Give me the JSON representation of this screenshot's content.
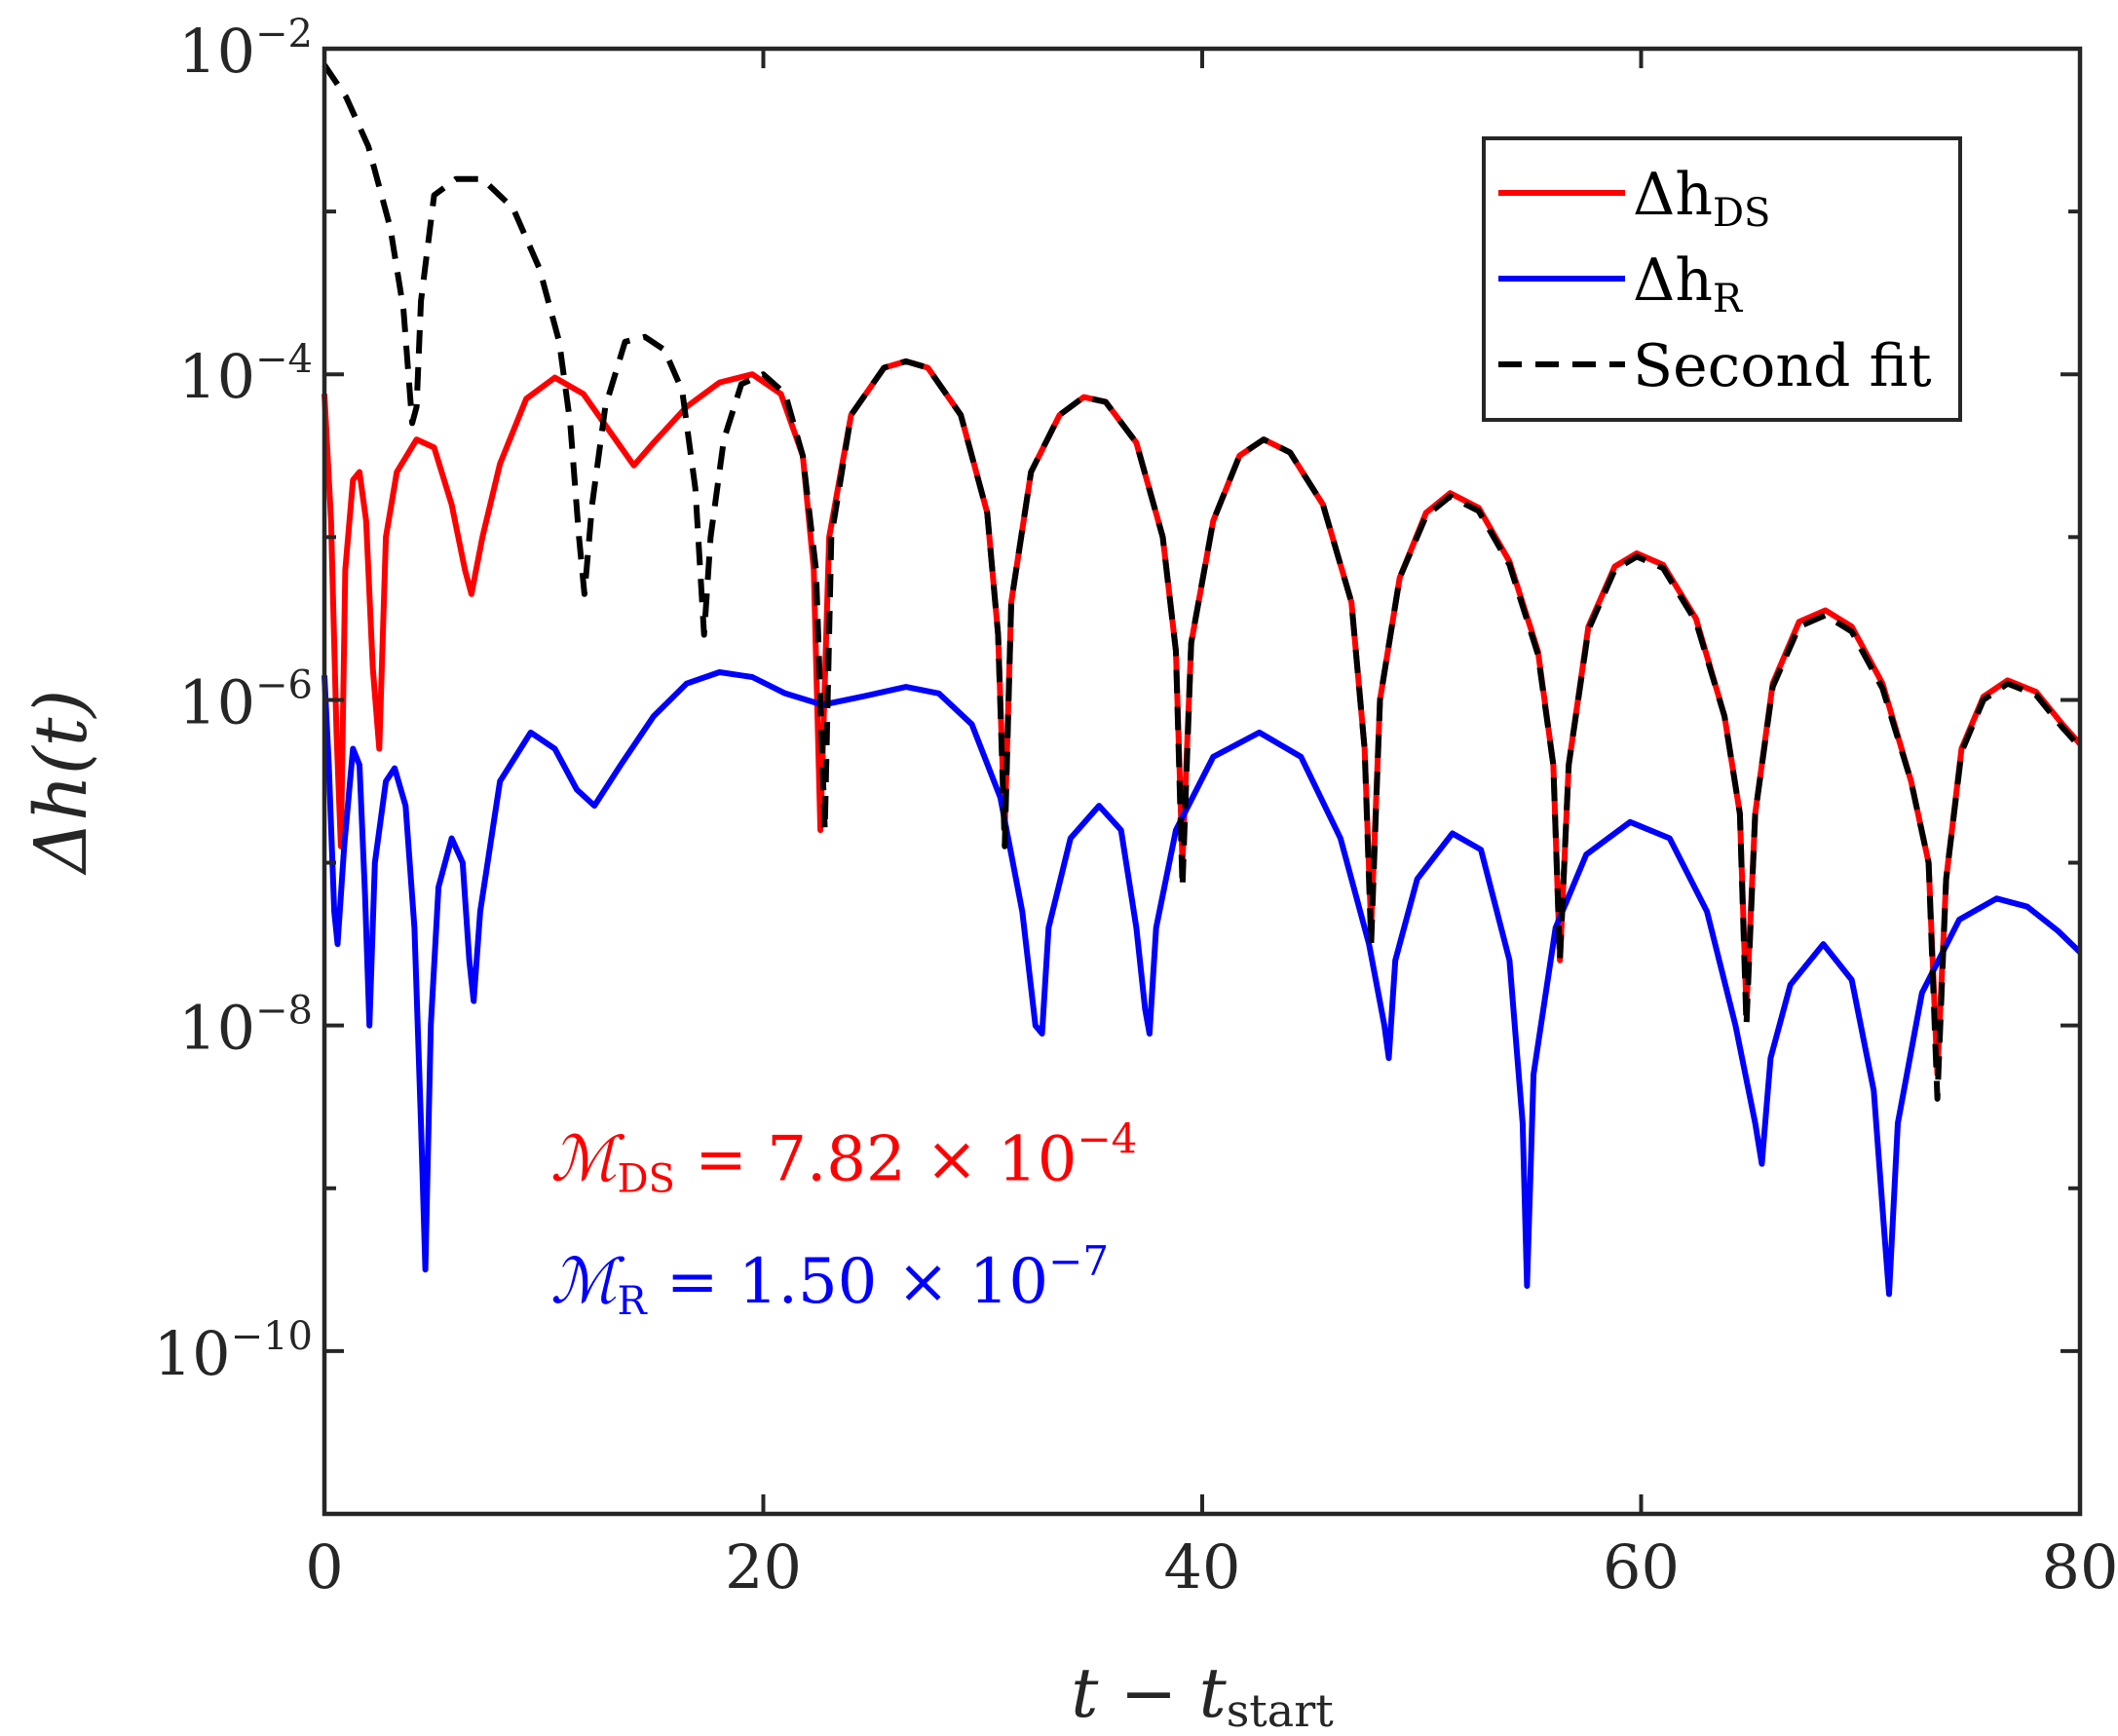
{
  "chart_data": {
    "type": "line",
    "xlabel": "t − t",
    "xlabel_sub": "start",
    "ylabel": "Δh(t)",
    "xlim": [
      0,
      80
    ],
    "ylim_log10": [
      -11,
      -2
    ],
    "yscale": "log",
    "x_ticks": [
      0,
      20,
      40,
      60,
      80
    ],
    "x_tick_labels": [
      "0",
      "20",
      "40",
      "60",
      "80"
    ],
    "y_ticks": [
      {
        "exp": -2,
        "base": "10",
        "sup": "−2"
      },
      {
        "exp": -4,
        "base": "10",
        "sup": "−4"
      },
      {
        "exp": -6,
        "base": "10",
        "sup": "−6"
      },
      {
        "exp": -8,
        "base": "10",
        "sup": "−8"
      },
      {
        "exp": -10,
        "base": "10",
        "sup": "−10"
      }
    ],
    "legend": {
      "position": "top-right",
      "entries": [
        {
          "name": "Δh",
          "sub": "DS",
          "color": "#ff0000",
          "style": "solid"
        },
        {
          "name": "Δh",
          "sub": "R",
          "color": "#0000ff",
          "style": "solid"
        },
        {
          "name": "Second fit",
          "sub": "",
          "color": "#000000",
          "style": "dashed"
        }
      ]
    },
    "annotations": [
      {
        "symbol": "ℳ",
        "sub": "DS",
        "text": " = 7.82 × 10",
        "sup": "−4",
        "color": "#ff0000",
        "x": 10.3,
        "y_log10": -8.95
      },
      {
        "symbol": "ℳ",
        "sub": "R",
        "text": " = 1.50 × 10",
        "sup": "−7",
        "color": "#0000ff",
        "x": 10.3,
        "y_log10": -9.7
      }
    ],
    "series": [
      {
        "name": "Δh_DS",
        "color": "#ff0000",
        "dashed": false,
        "points": [
          [
            0,
            -4.12
          ],
          [
            0.3,
            -4.9
          ],
          [
            0.55,
            -6.2
          ],
          [
            0.75,
            -6.9
          ],
          [
            0.95,
            -5.2
          ],
          [
            1.3,
            -4.65
          ],
          [
            1.6,
            -4.6
          ],
          [
            1.9,
            -4.9
          ],
          [
            2.2,
            -5.8
          ],
          [
            2.5,
            -6.3
          ],
          [
            2.8,
            -5.0
          ],
          [
            3.3,
            -4.6
          ],
          [
            4.2,
            -4.4
          ],
          [
            5.0,
            -4.45
          ],
          [
            5.8,
            -4.8
          ],
          [
            6.4,
            -5.2
          ],
          [
            6.7,
            -5.35
          ],
          [
            7.2,
            -5.0
          ],
          [
            8.0,
            -4.55
          ],
          [
            9.2,
            -4.15
          ],
          [
            10.5,
            -4.02
          ],
          [
            11.8,
            -4.12
          ],
          [
            13.0,
            -4.35
          ],
          [
            14.1,
            -4.56
          ],
          [
            15.0,
            -4.42
          ],
          [
            16.5,
            -4.2
          ],
          [
            18.0,
            -4.05
          ],
          [
            19.5,
            -4.0
          ],
          [
            20.8,
            -4.12
          ],
          [
            21.8,
            -4.5
          ],
          [
            22.3,
            -5.2
          ],
          [
            22.6,
            -6.8
          ],
          [
            23.0,
            -5.0
          ],
          [
            24.0,
            -4.25
          ],
          [
            25.5,
            -3.96
          ],
          [
            26.5,
            -3.92
          ],
          [
            27.5,
            -3.96
          ],
          [
            29.0,
            -4.25
          ],
          [
            30.2,
            -4.85
          ],
          [
            30.7,
            -5.6
          ],
          [
            31.0,
            -6.8
          ],
          [
            31.3,
            -5.4
          ],
          [
            32.2,
            -4.6
          ],
          [
            33.5,
            -4.25
          ],
          [
            34.6,
            -4.14
          ],
          [
            35.6,
            -4.17
          ],
          [
            37.0,
            -4.42
          ],
          [
            38.2,
            -5.0
          ],
          [
            38.8,
            -5.7
          ],
          [
            39.1,
            -7.0
          ],
          [
            39.5,
            -5.65
          ],
          [
            40.5,
            -4.9
          ],
          [
            41.7,
            -4.5
          ],
          [
            42.8,
            -4.4
          ],
          [
            44.0,
            -4.48
          ],
          [
            45.5,
            -4.8
          ],
          [
            46.8,
            -5.4
          ],
          [
            47.4,
            -6.3
          ],
          [
            47.7,
            -7.4
          ],
          [
            48.1,
            -6.0
          ],
          [
            49.0,
            -5.25
          ],
          [
            50.2,
            -4.85
          ],
          [
            51.3,
            -4.73
          ],
          [
            52.6,
            -4.82
          ],
          [
            54.0,
            -5.15
          ],
          [
            55.3,
            -5.7
          ],
          [
            56.0,
            -6.4
          ],
          [
            56.3,
            -7.6
          ],
          [
            56.7,
            -6.4
          ],
          [
            57.6,
            -5.55
          ],
          [
            58.8,
            -5.18
          ],
          [
            59.8,
            -5.1
          ],
          [
            61.0,
            -5.17
          ],
          [
            62.5,
            -5.5
          ],
          [
            63.8,
            -6.1
          ],
          [
            64.5,
            -6.7
          ],
          [
            64.8,
            -7.9
          ],
          [
            65.2,
            -6.7
          ],
          [
            66.0,
            -5.9
          ],
          [
            67.2,
            -5.52
          ],
          [
            68.4,
            -5.45
          ],
          [
            69.6,
            -5.55
          ],
          [
            71.0,
            -5.9
          ],
          [
            72.3,
            -6.5
          ],
          [
            73.1,
            -7.0
          ],
          [
            73.5,
            -8.3
          ],
          [
            73.9,
            -7.1
          ],
          [
            74.6,
            -6.3
          ],
          [
            75.6,
            -5.98
          ],
          [
            76.7,
            -5.88
          ],
          [
            78.0,
            -5.95
          ],
          [
            79.2,
            -6.15
          ],
          [
            80.0,
            -6.27
          ]
        ]
      },
      {
        "name": "Δh_R",
        "color": "#0000ff",
        "dashed": false,
        "points": [
          [
            0,
            -5.85
          ],
          [
            0.2,
            -6.4
          ],
          [
            0.45,
            -7.3
          ],
          [
            0.6,
            -7.5
          ],
          [
            0.9,
            -6.9
          ],
          [
            1.3,
            -6.3
          ],
          [
            1.6,
            -6.4
          ],
          [
            1.85,
            -7.2
          ],
          [
            2.05,
            -8.0
          ],
          [
            2.3,
            -7.0
          ],
          [
            2.8,
            -6.5
          ],
          [
            3.2,
            -6.42
          ],
          [
            3.7,
            -6.65
          ],
          [
            4.1,
            -7.4
          ],
          [
            4.4,
            -8.6
          ],
          [
            4.6,
            -9.5
          ],
          [
            4.85,
            -8.0
          ],
          [
            5.2,
            -7.15
          ],
          [
            5.8,
            -6.85
          ],
          [
            6.3,
            -7.0
          ],
          [
            6.6,
            -7.6
          ],
          [
            6.8,
            -7.85
          ],
          [
            7.1,
            -7.3
          ],
          [
            8.0,
            -6.5
          ],
          [
            9.4,
            -6.2
          ],
          [
            10.5,
            -6.3
          ],
          [
            11.5,
            -6.55
          ],
          [
            12.3,
            -6.65
          ],
          [
            13.5,
            -6.4
          ],
          [
            15.0,
            -6.1
          ],
          [
            16.5,
            -5.9
          ],
          [
            18.0,
            -5.83
          ],
          [
            19.5,
            -5.86
          ],
          [
            21.0,
            -5.96
          ],
          [
            22.7,
            -6.03
          ],
          [
            24.5,
            -5.98
          ],
          [
            26.5,
            -5.92
          ],
          [
            28.0,
            -5.96
          ],
          [
            29.5,
            -6.15
          ],
          [
            30.8,
            -6.6
          ],
          [
            31.8,
            -7.3
          ],
          [
            32.4,
            -8.0
          ],
          [
            32.7,
            -8.05
          ],
          [
            33.0,
            -7.4
          ],
          [
            34.0,
            -6.85
          ],
          [
            35.3,
            -6.65
          ],
          [
            36.3,
            -6.8
          ],
          [
            37.0,
            -7.4
          ],
          [
            37.4,
            -7.9
          ],
          [
            37.6,
            -8.05
          ],
          [
            37.9,
            -7.4
          ],
          [
            38.8,
            -6.8
          ],
          [
            40.5,
            -6.35
          ],
          [
            42.6,
            -6.2
          ],
          [
            44.5,
            -6.35
          ],
          [
            46.3,
            -6.85
          ],
          [
            47.6,
            -7.5
          ],
          [
            48.3,
            -8.0
          ],
          [
            48.5,
            -8.2
          ],
          [
            48.8,
            -7.6
          ],
          [
            49.8,
            -7.1
          ],
          [
            51.4,
            -6.82
          ],
          [
            52.7,
            -6.92
          ],
          [
            54.0,
            -7.6
          ],
          [
            54.6,
            -8.6
          ],
          [
            54.8,
            -9.6
          ],
          [
            55.1,
            -8.3
          ],
          [
            56.1,
            -7.4
          ],
          [
            57.5,
            -6.95
          ],
          [
            59.5,
            -6.75
          ],
          [
            61.3,
            -6.85
          ],
          [
            63.0,
            -7.3
          ],
          [
            64.3,
            -8.0
          ],
          [
            65.2,
            -8.6
          ],
          [
            65.5,
            -8.85
          ],
          [
            65.9,
            -8.2
          ],
          [
            66.8,
            -7.75
          ],
          [
            68.3,
            -7.5
          ],
          [
            69.6,
            -7.72
          ],
          [
            70.6,
            -8.4
          ],
          [
            71.1,
            -9.3
          ],
          [
            71.3,
            -9.65
          ],
          [
            71.7,
            -8.6
          ],
          [
            72.8,
            -7.8
          ],
          [
            74.5,
            -7.35
          ],
          [
            76.2,
            -7.22
          ],
          [
            77.6,
            -7.27
          ],
          [
            79.0,
            -7.42
          ],
          [
            80.0,
            -7.55
          ]
        ]
      },
      {
        "name": "Second fit",
        "color": "#000000",
        "dashed": true,
        "points": [
          [
            0,
            -2.1
          ],
          [
            1.0,
            -2.3
          ],
          [
            2.0,
            -2.6
          ],
          [
            3.0,
            -3.1
          ],
          [
            3.6,
            -3.6
          ],
          [
            4.0,
            -4.3
          ],
          [
            4.2,
            -4.2
          ],
          [
            4.4,
            -3.55
          ],
          [
            5.0,
            -2.9
          ],
          [
            6.0,
            -2.8
          ],
          [
            7.2,
            -2.8
          ],
          [
            8.6,
            -2.98
          ],
          [
            9.8,
            -3.35
          ],
          [
            10.7,
            -3.8
          ],
          [
            11.2,
            -4.3
          ],
          [
            11.6,
            -5.0
          ],
          [
            11.85,
            -5.35
          ],
          [
            12.2,
            -4.8
          ],
          [
            12.8,
            -4.2
          ],
          [
            13.7,
            -3.8
          ],
          [
            14.6,
            -3.77
          ],
          [
            15.5,
            -3.85
          ],
          [
            16.3,
            -4.1
          ],
          [
            16.9,
            -4.7
          ],
          [
            17.3,
            -5.6
          ],
          [
            17.6,
            -5.0
          ],
          [
            18.2,
            -4.4
          ],
          [
            19.0,
            -4.06
          ],
          [
            20.0,
            -4.0
          ],
          [
            21.0,
            -4.12
          ],
          [
            21.8,
            -4.5
          ],
          [
            22.4,
            -5.2
          ],
          [
            22.8,
            -6.8
          ],
          [
            23.1,
            -5.0
          ],
          [
            24.0,
            -4.25
          ],
          [
            25.5,
            -3.96
          ],
          [
            26.5,
            -3.92
          ],
          [
            27.5,
            -3.96
          ],
          [
            29.0,
            -4.25
          ],
          [
            30.2,
            -4.85
          ],
          [
            30.7,
            -5.6
          ],
          [
            31.0,
            -6.9
          ],
          [
            31.3,
            -5.4
          ],
          [
            32.2,
            -4.6
          ],
          [
            33.5,
            -4.25
          ],
          [
            34.6,
            -4.14
          ],
          [
            35.6,
            -4.17
          ],
          [
            37.0,
            -4.42
          ],
          [
            38.2,
            -5.0
          ],
          [
            38.8,
            -5.7
          ],
          [
            39.1,
            -7.15
          ],
          [
            39.5,
            -5.65
          ],
          [
            40.5,
            -4.9
          ],
          [
            41.7,
            -4.5
          ],
          [
            42.8,
            -4.4
          ],
          [
            44.0,
            -4.48
          ],
          [
            45.5,
            -4.8
          ],
          [
            46.8,
            -5.4
          ],
          [
            47.4,
            -6.3
          ],
          [
            47.7,
            -7.5
          ],
          [
            48.1,
            -6.0
          ],
          [
            49.0,
            -5.25
          ],
          [
            50.2,
            -4.87
          ],
          [
            51.3,
            -4.75
          ],
          [
            52.6,
            -4.84
          ],
          [
            54.0,
            -5.17
          ],
          [
            55.3,
            -5.72
          ],
          [
            56.0,
            -6.4
          ],
          [
            56.3,
            -7.6
          ],
          [
            56.7,
            -6.4
          ],
          [
            57.6,
            -5.57
          ],
          [
            58.8,
            -5.2
          ],
          [
            59.8,
            -5.12
          ],
          [
            61.0,
            -5.19
          ],
          [
            62.5,
            -5.52
          ],
          [
            63.8,
            -6.1
          ],
          [
            64.5,
            -6.7
          ],
          [
            64.8,
            -8.0
          ],
          [
            65.2,
            -6.7
          ],
          [
            66.0,
            -5.92
          ],
          [
            67.2,
            -5.55
          ],
          [
            68.4,
            -5.48
          ],
          [
            69.6,
            -5.58
          ],
          [
            71.0,
            -5.93
          ],
          [
            72.3,
            -6.5
          ],
          [
            73.1,
            -7.0
          ],
          [
            73.5,
            -8.45
          ],
          [
            73.9,
            -7.1
          ],
          [
            74.6,
            -6.32
          ],
          [
            75.6,
            -6.0
          ],
          [
            76.7,
            -5.9
          ],
          [
            78.0,
            -5.97
          ],
          [
            79.2,
            -6.17
          ],
          [
            80.0,
            -6.29
          ]
        ]
      }
    ]
  }
}
